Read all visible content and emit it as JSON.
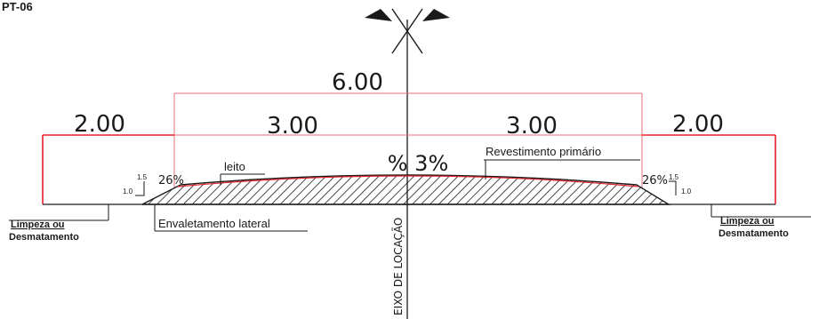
{
  "sheet_code": "PT-06",
  "dimensions": {
    "total_width": "6.00",
    "left_shoulder": "2.00",
    "right_shoulder": "2.00",
    "left_lane": "3.00",
    "right_lane": "3.00"
  },
  "slopes": {
    "crown": "% 3%",
    "left_side": "26%",
    "right_side": "26%",
    "left_ratio_v": "1.5",
    "left_ratio_h": "1.0",
    "right_ratio_v": "1.5",
    "right_ratio_h": "1.0"
  },
  "labels": {
    "roadbed": "leito",
    "surface": "Revestimento primário",
    "side_ditch": "Envaletamento lateral",
    "axis": "EIXO DE LOCAÇÃO",
    "clearing_left_1": "Limpeza ou",
    "clearing_left_2": "Desmatamento",
    "clearing_right_1": "Limpeza ou",
    "clearing_right_2": "Desmatamento"
  },
  "colors": {
    "dimension_line": "#e0707a",
    "shoulder_line": "#e8202a",
    "ink": "#1a1a1a"
  }
}
